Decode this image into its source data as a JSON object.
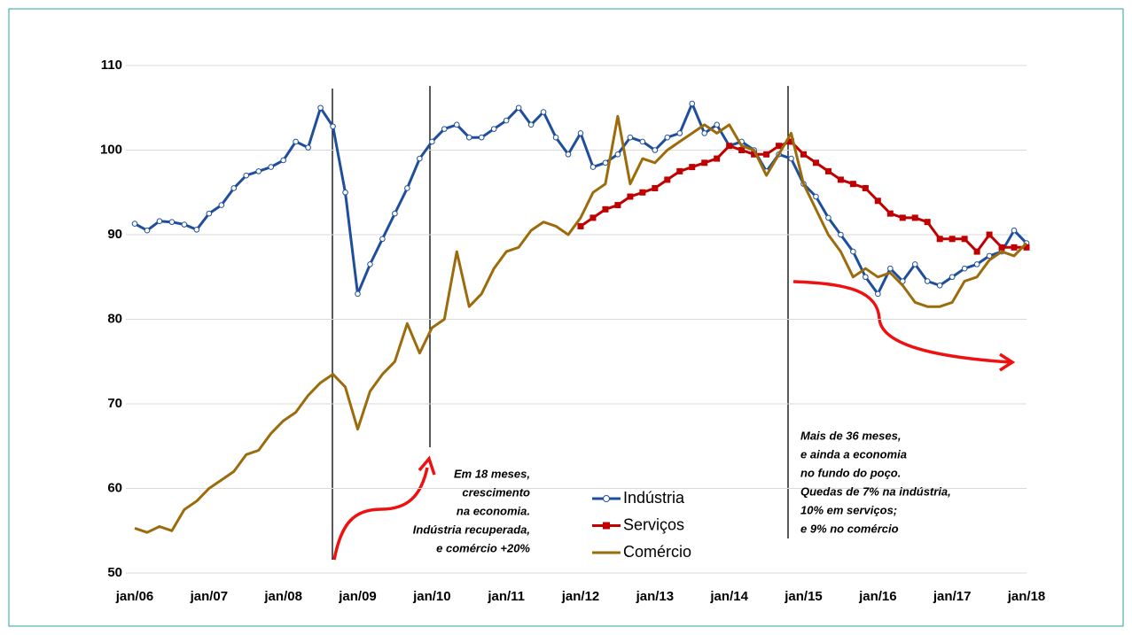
{
  "chart_data": {
    "type": "line",
    "categories": [
      "jan/06",
      null,
      null,
      null,
      null,
      null,
      "jan/07",
      null,
      null,
      null,
      null,
      null,
      "jan/08",
      null,
      null,
      null,
      null,
      null,
      "jan/09",
      null,
      null,
      null,
      null,
      null,
      "jan/10",
      null,
      null,
      null,
      null,
      null,
      "jan/11",
      null,
      null,
      null,
      null,
      null,
      "jan/12",
      null,
      null,
      null,
      null,
      null,
      "jan/13",
      null,
      null,
      null,
      null,
      null,
      "jan/14",
      null,
      null,
      null,
      null,
      null,
      "jan/15",
      null,
      null,
      null,
      null,
      null,
      "jan/16",
      null,
      null,
      null,
      null,
      null,
      "jan/17",
      null,
      null,
      null,
      null,
      null,
      "jan/18"
    ],
    "series": [
      {
        "name": "Indústria",
        "color": "#1f4e9c",
        "marker": "circle",
        "values": [
          91.3,
          90.5,
          91.6,
          91.5,
          91.2,
          90.6,
          92.5,
          93.5,
          95.5,
          97,
          97.5,
          98,
          98.8,
          101,
          100.3,
          105,
          102.8,
          95,
          83,
          86.5,
          89.5,
          92.5,
          95.5,
          99,
          101,
          102.5,
          103,
          101.5,
          101.5,
          102.5,
          103.5,
          105,
          103,
          104.5,
          101.5,
          99.5,
          102,
          98,
          98.5,
          99.5,
          101.5,
          101,
          100,
          101.5,
          102,
          105.5,
          102,
          103,
          100.5,
          101,
          100,
          97.5,
          99.5,
          99,
          96,
          94.5,
          92,
          90,
          88,
          85,
          83,
          86,
          84.5,
          86.5,
          84.5,
          84,
          85,
          86,
          86.5,
          87.5,
          88,
          90.5,
          89
        ]
      },
      {
        "name": "Serviços",
        "color": "#c00000",
        "marker": "square",
        "values": [
          null,
          null,
          null,
          null,
          null,
          null,
          null,
          null,
          null,
          null,
          null,
          null,
          null,
          null,
          null,
          null,
          null,
          null,
          null,
          null,
          null,
          null,
          null,
          null,
          null,
          null,
          null,
          null,
          null,
          null,
          null,
          null,
          null,
          null,
          null,
          null,
          91,
          92,
          93,
          93.5,
          94.5,
          95,
          95.5,
          96.5,
          97.5,
          98,
          98.5,
          99,
          100.5,
          100,
          99.5,
          99.5,
          100.5,
          101,
          99.5,
          98.5,
          97.5,
          96.5,
          96,
          95.5,
          94,
          92.5,
          92,
          92,
          91.5,
          89.5,
          89.5,
          89.5,
          88,
          90,
          88.5,
          88.5,
          88.5
        ]
      },
      {
        "name": "Comércio",
        "color": "#9c6b0b",
        "marker": "none",
        "values": [
          55.3,
          54.8,
          55.5,
          55,
          57.5,
          58.5,
          60,
          61,
          62,
          64,
          64.5,
          66.5,
          68,
          69,
          71,
          72.5,
          73.5,
          72,
          67,
          71.5,
          73.5,
          75,
          79.5,
          76,
          79,
          80,
          88,
          81.5,
          83,
          86,
          88,
          88.5,
          90.5,
          91.5,
          91,
          90,
          92,
          95,
          96,
          104,
          96,
          99,
          98.5,
          100,
          101,
          102,
          103,
          102,
          103,
          100.5,
          100,
          97,
          99.5,
          102,
          96,
          93,
          90,
          88,
          85,
          86,
          85,
          85.5,
          84,
          82,
          81.5,
          81.5,
          82,
          84.5,
          85,
          87,
          88,
          87.5,
          89
        ]
      }
    ],
    "ylim": [
      50,
      110
    ],
    "yticks": [
      50,
      60,
      70,
      80,
      90,
      100,
      110
    ],
    "grid": true,
    "annotations": [
      [
        "Em 18 meses,",
        "crescimento",
        "na economia.",
        "Indústria recuperada,",
        "e comércio +20%"
      ],
      [
        "Mais de 36 meses,",
        "e ainda  a economia",
        "no fundo  do poço.",
        "Quedas de 7% na indústria,",
        "10% em serviços;",
        "e 9% no comércio"
      ]
    ]
  }
}
